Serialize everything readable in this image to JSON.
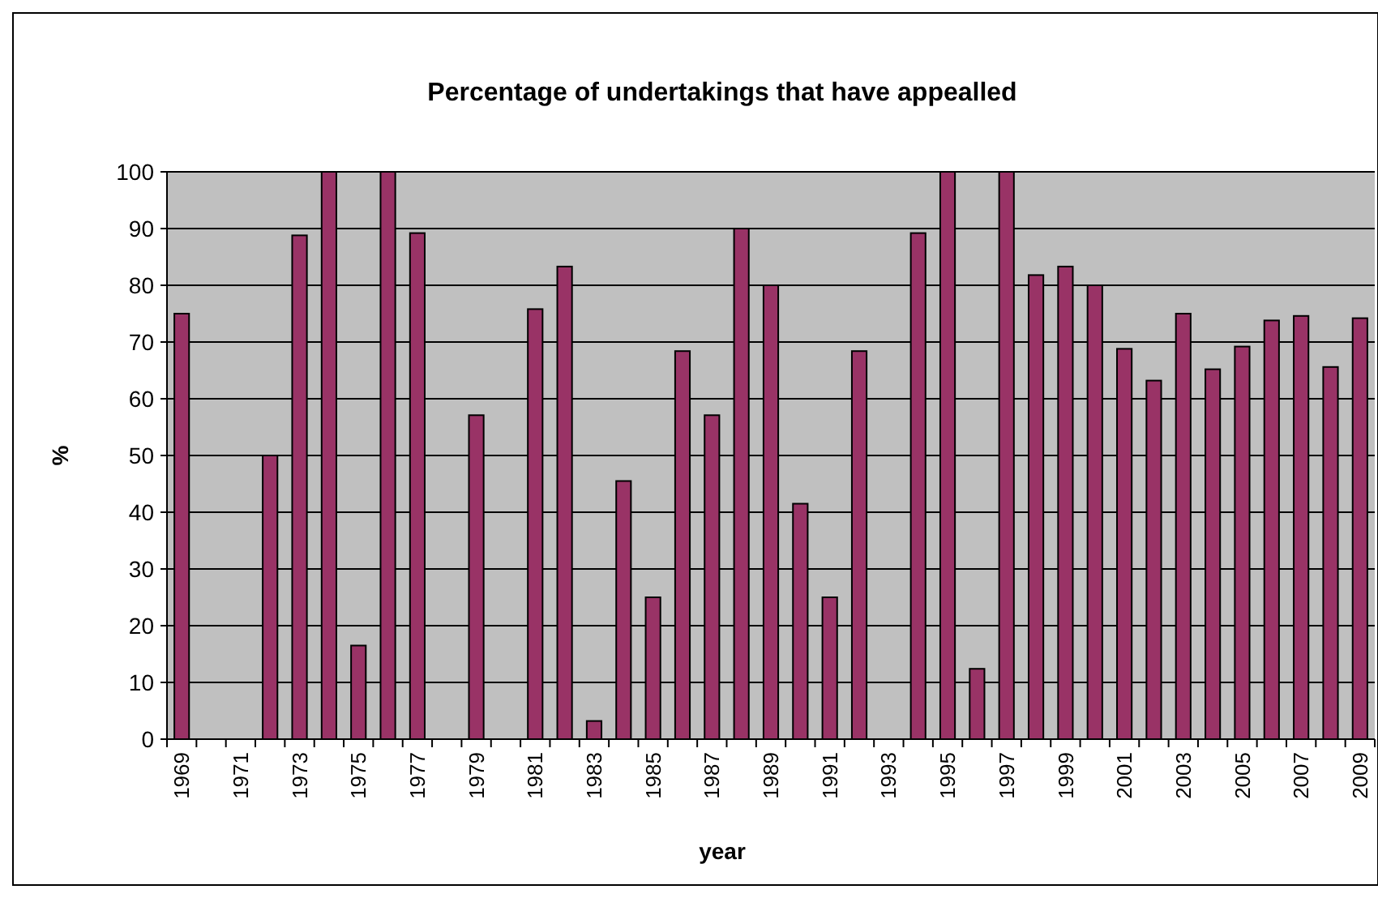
{
  "chart_data": {
    "type": "bar",
    "title": "Percentage of undertakings that have appealled",
    "xlabel": "year",
    "ylabel": "%",
    "categories": [
      "1969",
      null,
      "1971",
      null,
      "1973",
      null,
      "1975",
      null,
      "1977",
      null,
      "1979",
      null,
      "1981",
      null,
      "1983",
      null,
      "1985",
      null,
      "1987",
      null,
      "1989",
      null,
      "1991",
      null,
      "1993",
      null,
      "1995",
      null,
      "1997",
      null,
      "1999",
      null,
      "2001",
      null,
      "2003",
      null,
      "2005",
      null,
      "2007",
      null,
      "2009"
    ],
    "values": [
      75,
      null,
      null,
      50,
      88.8,
      100,
      16.5,
      100,
      89.2,
      null,
      57.1,
      null,
      75.8,
      83.3,
      3.2,
      45.5,
      25,
      68.4,
      57.1,
      90,
      80,
      41.5,
      25,
      68.4,
      null,
      89.2,
      100,
      12.4,
      100,
      81.8,
      83.3,
      80,
      68.8,
      63.2,
      75,
      65.2,
      69.2,
      73.8,
      74.6,
      65.6,
      74.2
    ],
    "color": "#993366",
    "ylim": [
      0,
      100
    ],
    "yticks": [
      0,
      10,
      20,
      30,
      40,
      50,
      60,
      70,
      80,
      90,
      100
    ],
    "grid": "y"
  }
}
